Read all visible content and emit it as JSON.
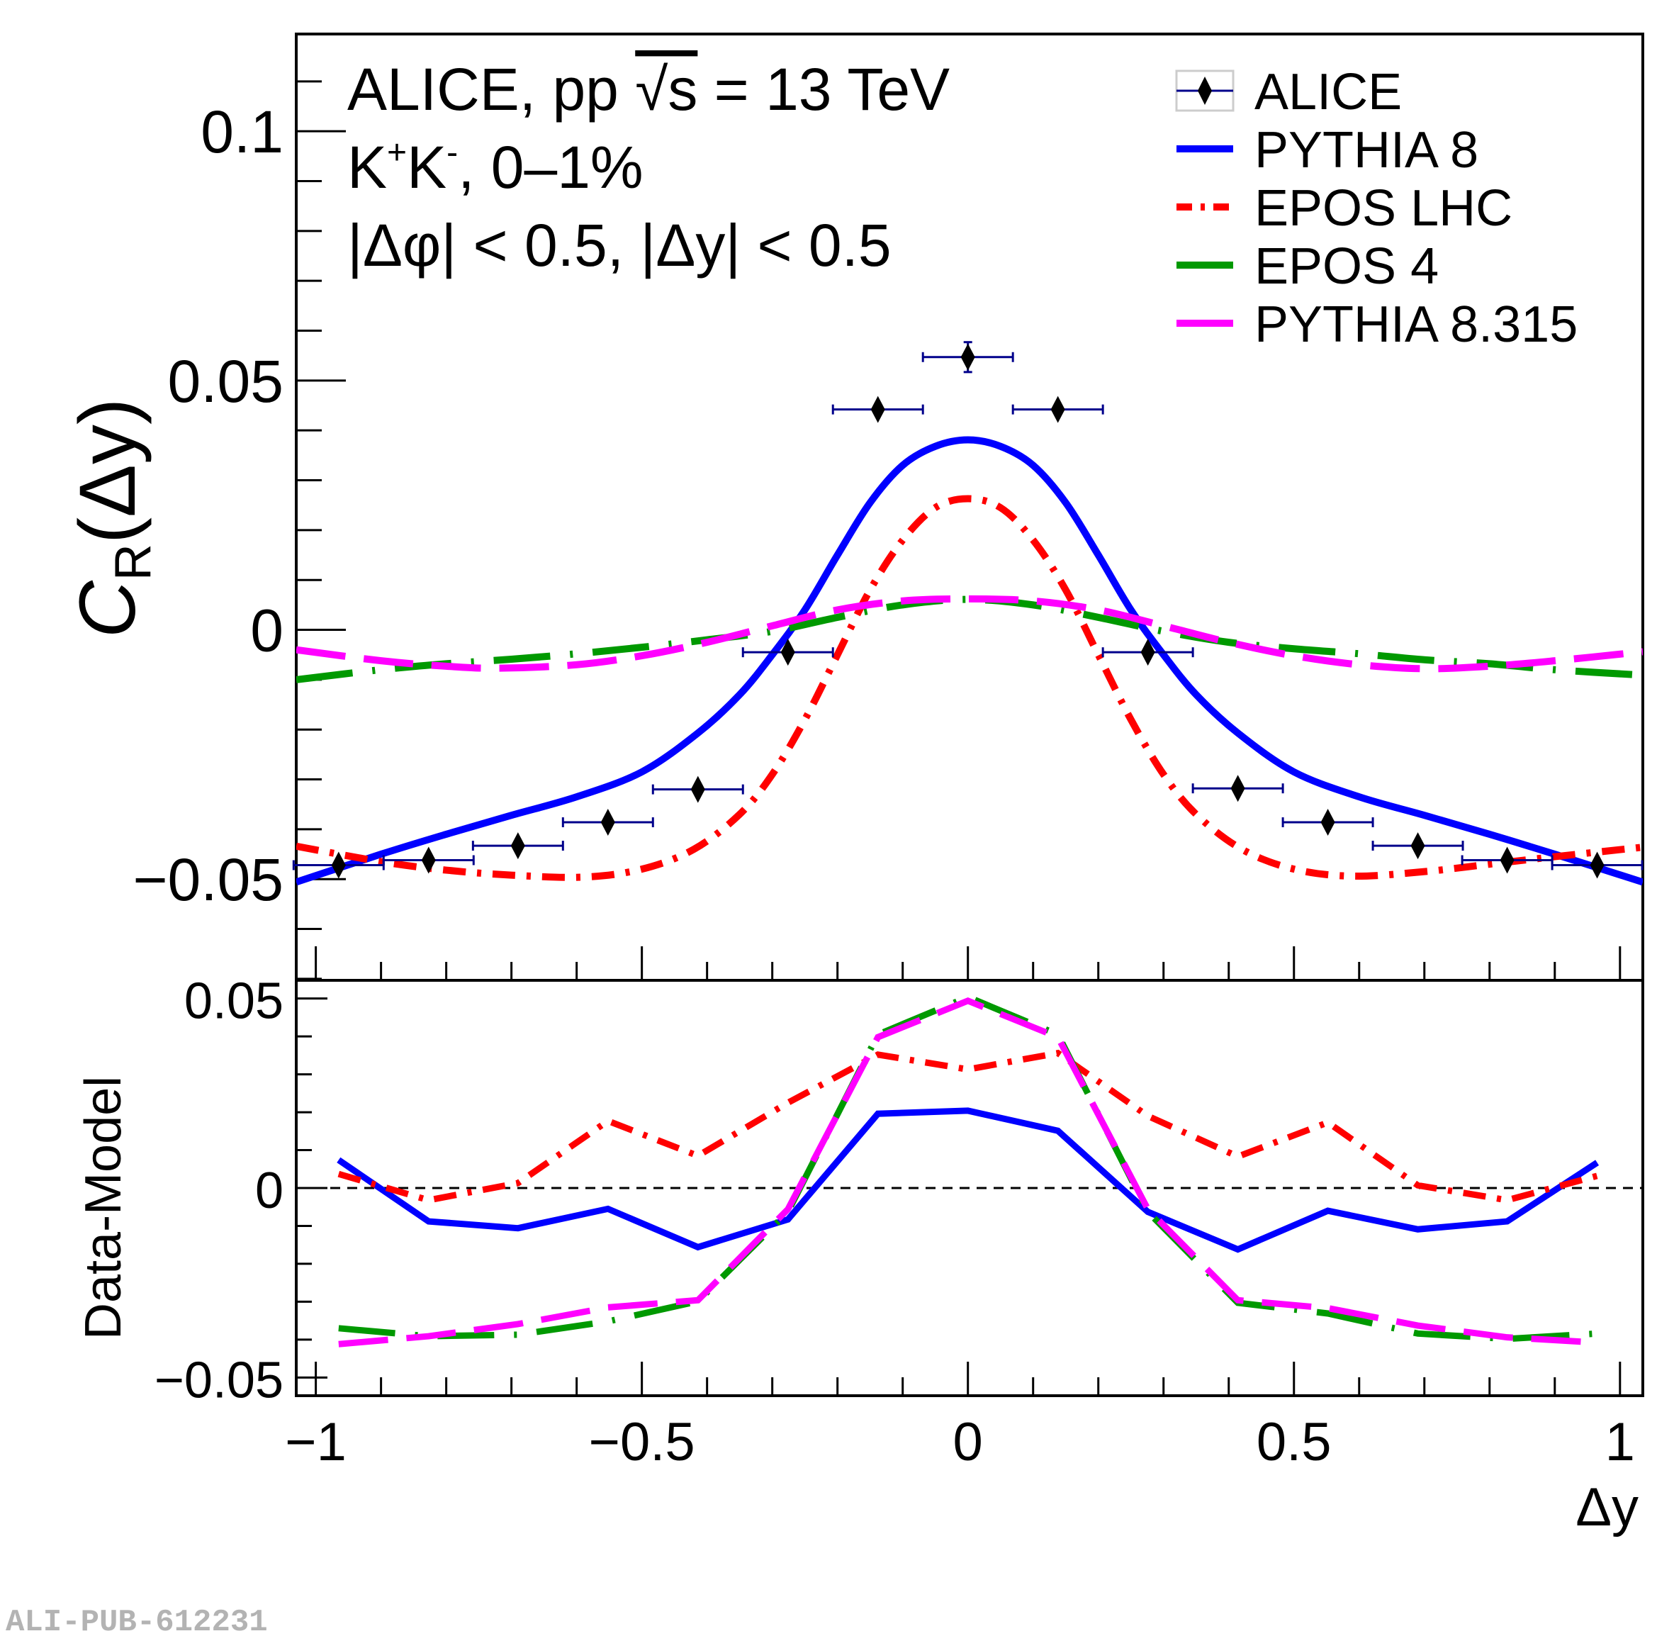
{
  "chart_data": [
    {
      "panel": "top",
      "type": "line",
      "title": "",
      "annotations": [
        "ALICE, pp √s = 13 TeV",
        "K⁺K⁻, 0–1%",
        "|Δφ| < 0.5, |Δy| < 0.5"
      ],
      "xlabel": "Δy",
      "ylabel": "C_R(Δy)",
      "xlim": [
        -1.03,
        1.035
      ],
      "ylim": [
        -0.0703,
        0.1195
      ],
      "xticks": [
        -1,
        -0.5,
        0,
        0.5,
        1
      ],
      "xtick_labels": [
        "−1",
        "−0.5",
        "0",
        "0.5",
        "1"
      ],
      "yticks": [
        -0.05,
        0,
        0.05,
        0.1
      ],
      "ytick_labels": [
        "−0.05",
        "0",
        "0.05",
        "0.1"
      ],
      "grid": false,
      "legend_position": "top-right",
      "legend": [
        "ALICE",
        "PYTHIA 8",
        "EPOS LHC",
        "EPOS 4",
        "PYTHIA 8.315"
      ],
      "data_points": {
        "name": "ALICE",
        "color": "#000000",
        "errorbar_color": "#00008b",
        "marker": "diamond",
        "x": [
          -0.965,
          -0.827,
          -0.69,
          -0.552,
          -0.414,
          -0.276,
          -0.138,
          0.0,
          0.138,
          0.276,
          0.414,
          0.552,
          0.69,
          0.827,
          0.965
        ],
        "y": [
          -0.0472,
          -0.0462,
          -0.0433,
          -0.0386,
          -0.032,
          -0.0045,
          0.0442,
          0.0547,
          0.0442,
          -0.0045,
          -0.0318,
          -0.0386,
          -0.0433,
          -0.0462,
          -0.0472
        ],
        "xerr": 0.069,
        "yerr": [
          0.0005,
          0.0005,
          0.0005,
          0.0005,
          0.0005,
          0.0005,
          0.0005,
          0.003,
          0.0005,
          0.0005,
          0.0005,
          0.0005,
          0.0005,
          0.0005,
          0.0005
        ]
      },
      "series": [
        {
          "name": "PYTHIA 8",
          "color": "#0000ff",
          "style": "solid",
          "x": [
            -1.03,
            -0.9,
            -0.8,
            -0.7,
            -0.6,
            -0.5,
            -0.414,
            -0.35,
            -0.3,
            -0.25,
            -0.2,
            -0.15,
            -0.1,
            -0.05,
            0.0,
            0.05,
            0.1,
            0.15,
            0.2,
            0.25,
            0.3,
            0.35,
            0.414,
            0.5,
            0.6,
            0.7,
            0.8,
            0.9,
            1.035
          ],
          "y": [
            -0.0506,
            -0.045,
            -0.041,
            -0.0372,
            -0.0335,
            -0.0285,
            -0.0207,
            -0.013,
            -0.005,
            0.004,
            0.015,
            0.0255,
            0.033,
            0.0368,
            0.0381,
            0.0368,
            0.033,
            0.0255,
            0.015,
            0.004,
            -0.005,
            -0.013,
            -0.0207,
            -0.0285,
            -0.0335,
            -0.0372,
            -0.041,
            -0.045,
            -0.0506
          ]
        },
        {
          "name": "EPOS LHC",
          "color": "#ff0000",
          "style": "dash-dot",
          "x": [
            -1.03,
            -0.9,
            -0.8,
            -0.7,
            -0.59,
            -0.5,
            -0.42,
            -0.35,
            -0.3,
            -0.25,
            -0.2,
            -0.15,
            -0.1,
            -0.05,
            0.0,
            0.05,
            0.1,
            0.15,
            0.2,
            0.25,
            0.3,
            0.35,
            0.42,
            0.5,
            0.59,
            0.7,
            0.8,
            0.9,
            1.035
          ],
          "y": [
            -0.0434,
            -0.0465,
            -0.0482,
            -0.0492,
            -0.0496,
            -0.048,
            -0.044,
            -0.037,
            -0.029,
            -0.018,
            -0.005,
            0.008,
            0.018,
            0.0245,
            0.0263,
            0.0245,
            0.018,
            0.008,
            -0.005,
            -0.018,
            -0.029,
            -0.037,
            -0.044,
            -0.048,
            -0.0494,
            -0.0485,
            -0.047,
            -0.0455,
            -0.0436
          ]
        },
        {
          "name": "EPOS 4",
          "color": "#009900",
          "style": "long-dash-dot",
          "x": [
            -1.03,
            -0.9,
            -0.8,
            -0.7,
            -0.6,
            -0.5,
            -0.4,
            -0.3,
            -0.2,
            -0.1,
            0.0,
            0.1,
            0.2,
            0.3,
            0.4,
            0.5,
            0.6,
            0.7,
            0.8,
            0.9,
            1.035
          ],
          "y": [
            -0.01,
            -0.008,
            -0.0068,
            -0.0059,
            -0.0048,
            -0.0035,
            -0.002,
            -0.0003,
            0.0025,
            0.005,
            0.0061,
            0.005,
            0.0025,
            -0.0003,
            -0.0025,
            -0.0038,
            -0.0048,
            -0.006,
            -0.0068,
            -0.008,
            -0.0091
          ]
        },
        {
          "name": "PYTHIA 8.315",
          "color": "#ff00ff",
          "style": "long-dash",
          "x": [
            -1.03,
            -0.9,
            -0.8,
            -0.72,
            -0.6,
            -0.5,
            -0.4,
            -0.3,
            -0.2,
            -0.1,
            0.0,
            0.1,
            0.2,
            0.3,
            0.4,
            0.5,
            0.6,
            0.7,
            0.8,
            0.9,
            1.035
          ],
          "y": [
            -0.004,
            -0.0062,
            -0.0073,
            -0.0077,
            -0.007,
            -0.0052,
            -0.0025,
            0.0008,
            0.004,
            0.0058,
            0.0062,
            0.0058,
            0.004,
            0.0008,
            -0.0025,
            -0.0052,
            -0.007,
            -0.0078,
            -0.0073,
            -0.0062,
            -0.0044
          ]
        }
      ]
    },
    {
      "panel": "bottom",
      "type": "line",
      "xlabel": "Δy",
      "ylabel": "Data-Model",
      "xlim": [
        -1.03,
        1.035
      ],
      "ylim": [
        -0.0548,
        0.0548
      ],
      "xticks": [
        -1,
        -0.5,
        0,
        0.5,
        1
      ],
      "xtick_labels": [
        "−1",
        "−0.5",
        "0",
        "0.5",
        "1"
      ],
      "yticks": [
        -0.05,
        0,
        0.05
      ],
      "ytick_labels": [
        "−0.05",
        "0",
        "0.05"
      ],
      "reference_line": {
        "y": 0,
        "style": "dashed",
        "color": "#000000"
      },
      "grid": false,
      "x": [
        -0.965,
        -0.827,
        -0.69,
        -0.552,
        -0.414,
        -0.276,
        -0.138,
        0.0,
        0.138,
        0.276,
        0.414,
        0.552,
        0.69,
        0.827,
        0.965
      ],
      "series": [
        {
          "name": "PYTHIA 8",
          "color": "#0000ff",
          "style": "solid",
          "values": [
            0.0074,
            -0.0088,
            -0.0106,
            -0.0055,
            -0.0156,
            -0.0083,
            0.0196,
            0.0204,
            0.0151,
            -0.0063,
            -0.0162,
            -0.006,
            -0.0109,
            -0.0088,
            0.0067
          ]
        },
        {
          "name": "EPOS LHC",
          "color": "#ff0000",
          "style": "dash-dot",
          "values": [
            0.0037,
            -0.0032,
            0.0013,
            0.0177,
            0.0085,
            0.0225,
            0.0352,
            0.0313,
            0.0356,
            0.019,
            0.0083,
            0.0173,
            0.0007,
            -0.0032,
            0.0032
          ]
        },
        {
          "name": "EPOS 4",
          "color": "#009900",
          "style": "long-dash-dot",
          "values": [
            -0.037,
            -0.0391,
            -0.0387,
            -0.0352,
            -0.0299,
            -0.0063,
            0.0405,
            0.0504,
            0.0405,
            -0.0063,
            -0.0303,
            -0.0331,
            -0.0384,
            -0.0398,
            -0.0384
          ]
        },
        {
          "name": "PYTHIA 8.315",
          "color": "#ff00ff",
          "style": "long-dash",
          "values": [
            -0.0412,
            -0.0391,
            -0.0359,
            -0.0315,
            -0.0296,
            -0.0056,
            0.0398,
            0.0494,
            0.0398,
            -0.0056,
            -0.0296,
            -0.0317,
            -0.0363,
            -0.0394,
            -0.0408
          ]
        }
      ]
    }
  ],
  "labels": {
    "top_ylabel_main": "C",
    "top_ylabel_sub": "R",
    "top_ylabel_rest": "(Δy)",
    "bottom_ylabel": "Data-Model",
    "xlabel": "Δy",
    "annotation_line1_prefix": "ALICE, pp",
    "annotation_line1_sqrt": "√s",
    "annotation_line1_suffix": " = 13 TeV",
    "annotation_line2_k1": "K",
    "annotation_line2_plus": "+",
    "annotation_line2_k2": "K",
    "annotation_line2_minus": "-",
    "annotation_line2_rest": ", 0–1%",
    "annotation_line3": "|Δφ| < 0.5, |Δy| < 0.5",
    "publication_id": "ALI-PUB-612231"
  }
}
